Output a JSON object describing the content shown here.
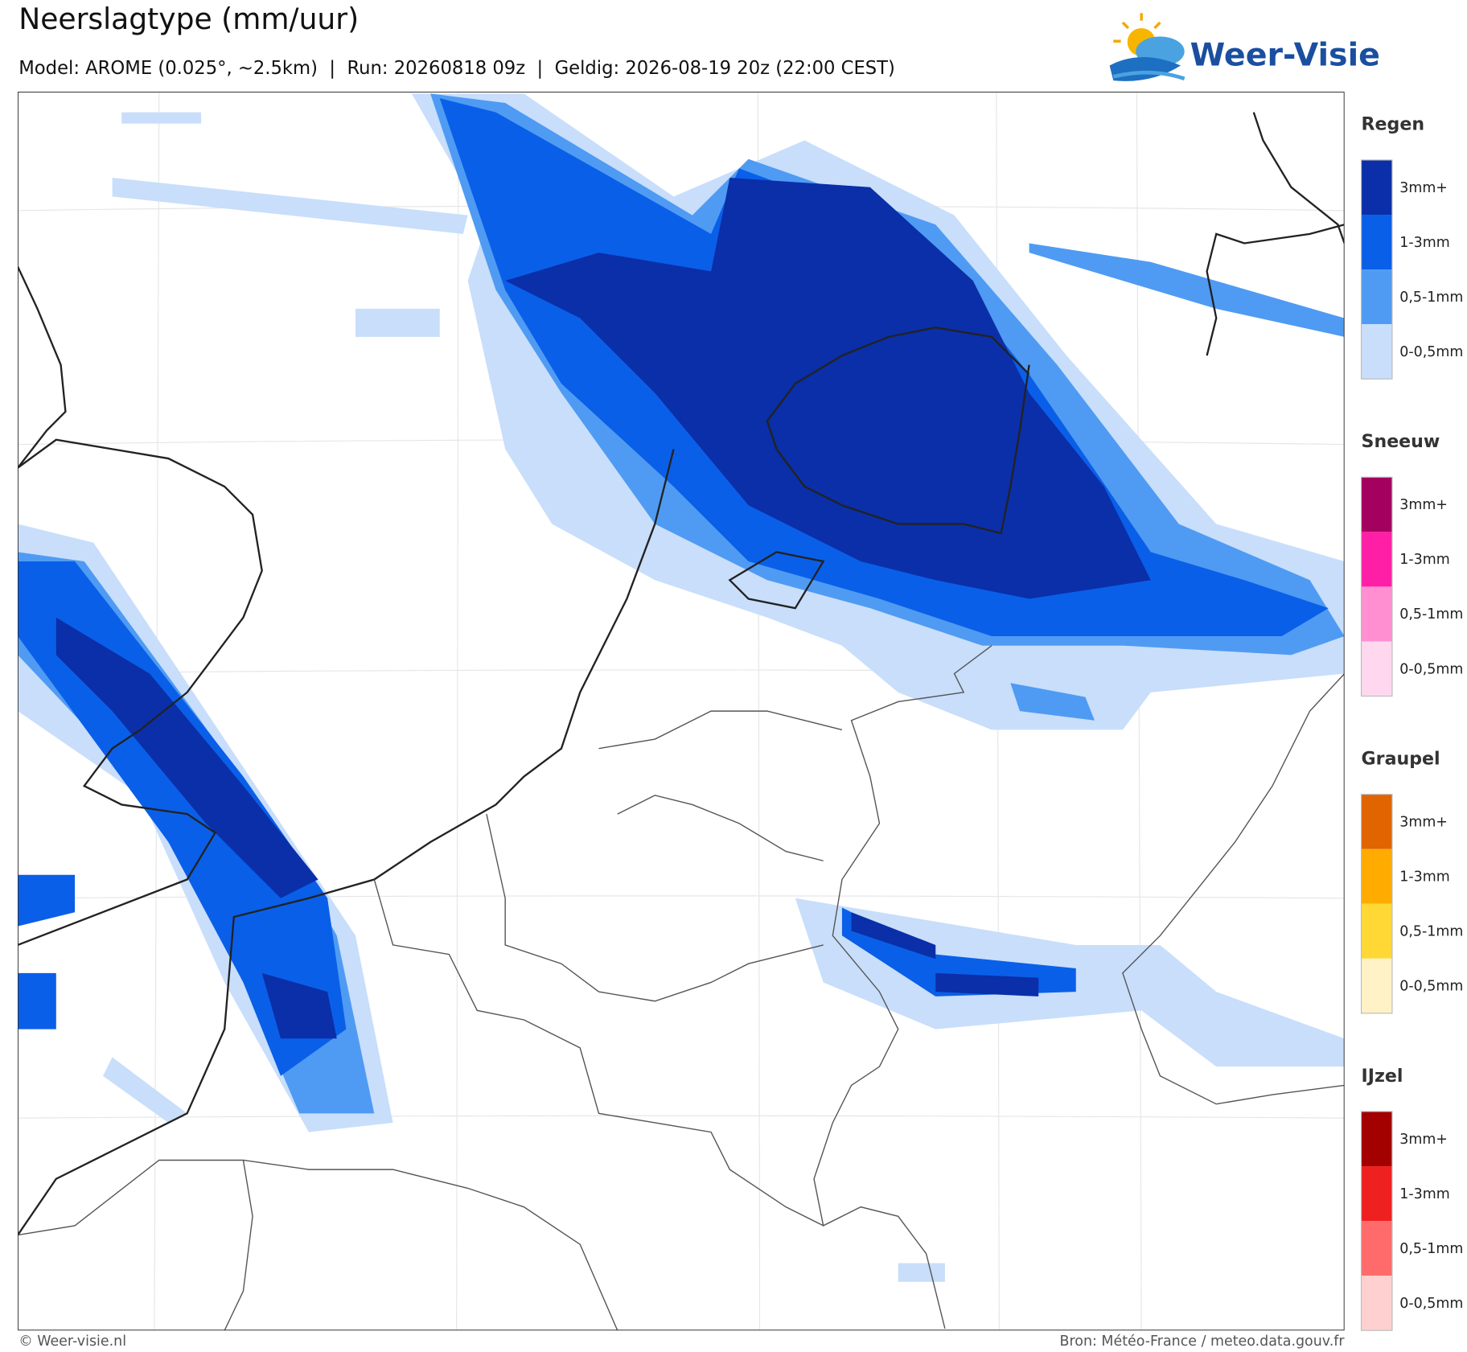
{
  "header": {
    "title": "Neerslagtype (mm/uur)",
    "subtitle": "Model: AROME (0.025°, ~2.5km)  |  Run: 20260818 09z  |  Geldig: 2026-08-19 20z (22:00 CEST)",
    "logo": "Weer-Visie"
  },
  "legend": [
    {
      "title": "Regen",
      "items": [
        {
          "label": "3mm+",
          "color": "#0a2fa8"
        },
        {
          "label": "1-3mm",
          "color": "#0a5fe8"
        },
        {
          "label": "0,5-1mm",
          "color": "#4f9bf3"
        },
        {
          "label": "0-0,5mm",
          "color": "#c8defb"
        }
      ]
    },
    {
      "title": "Sneeuw",
      "items": [
        {
          "label": "3mm+",
          "color": "#a3005f"
        },
        {
          "label": "1-3mm",
          "color": "#ff1fa6"
        },
        {
          "label": "0,5-1mm",
          "color": "#ff8fd0"
        },
        {
          "label": "0-0,5mm",
          "color": "#ffd8ef"
        }
      ]
    },
    {
      "title": "Graupel",
      "items": [
        {
          "label": "3mm+",
          "color": "#e06400"
        },
        {
          "label": "1-3mm",
          "color": "#ffab00"
        },
        {
          "label": "0,5-1mm",
          "color": "#ffd836"
        },
        {
          "label": "0-0,5mm",
          "color": "#fff2c6"
        }
      ]
    },
    {
      "title": "IJzel",
      "items": [
        {
          "label": "3mm+",
          "color": "#a30000"
        },
        {
          "label": "1-3mm",
          "color": "#ee2020"
        },
        {
          "label": "0,5-1mm",
          "color": "#ff6b6b"
        },
        {
          "label": "0-0,5mm",
          "color": "#ffd0d0"
        }
      ]
    }
  ],
  "footer": {
    "credit": "© Weer-visie.nl",
    "source": "Bron: Météo-France / meteo.data.gouv.fr"
  }
}
